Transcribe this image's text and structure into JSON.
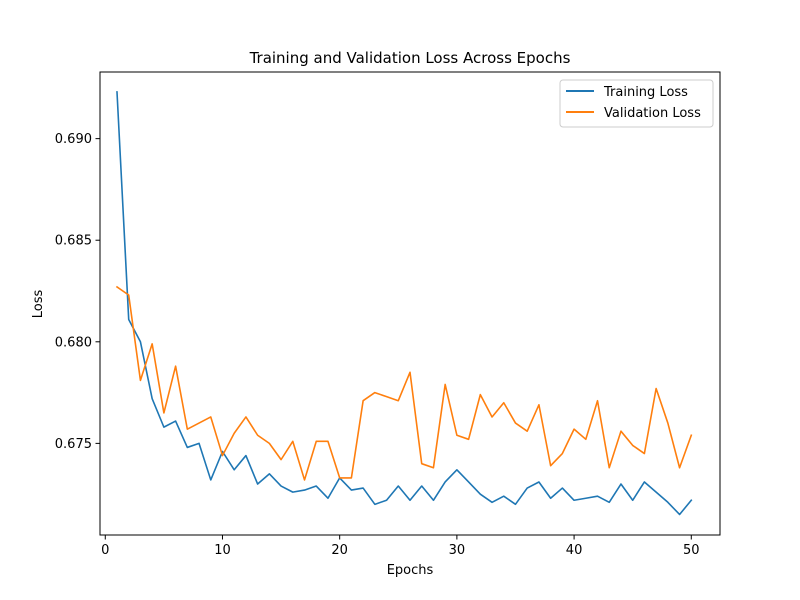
{
  "chart_data": {
    "type": "line",
    "title": "Training and Validation Loss Across Epochs",
    "xlabel": "Epochs",
    "ylabel": "Loss",
    "xlim": [
      -0.45,
      52.45
    ],
    "ylim": [
      0.67049,
      0.69328
    ],
    "xticks": [
      0,
      10,
      20,
      30,
      40,
      50
    ],
    "yticks": [
      0.675,
      0.68,
      0.685,
      0.69
    ],
    "ytick_labels": [
      "0.675",
      "0.680",
      "0.685",
      "0.690"
    ],
    "grid": false,
    "legend_position": "top-right",
    "x": [
      1,
      2,
      3,
      4,
      5,
      6,
      7,
      8,
      9,
      10,
      11,
      12,
      13,
      14,
      15,
      16,
      17,
      18,
      19,
      20,
      21,
      22,
      23,
      24,
      25,
      26,
      27,
      28,
      29,
      30,
      31,
      32,
      33,
      34,
      35,
      36,
      37,
      38,
      39,
      40,
      41,
      42,
      43,
      44,
      45,
      46,
      47,
      48,
      49,
      50
    ],
    "series": [
      {
        "name": "Training Loss",
        "color": "#1f77b4",
        "values": [
          0.6923,
          0.6811,
          0.68,
          0.6772,
          0.6758,
          0.6761,
          0.6748,
          0.675,
          0.6732,
          0.6746,
          0.6737,
          0.6744,
          0.673,
          0.6735,
          0.6729,
          0.6726,
          0.6727,
          0.6729,
          0.6723,
          0.6733,
          0.6727,
          0.6728,
          0.672,
          0.6722,
          0.6729,
          0.6722,
          0.6729,
          0.6722,
          0.6731,
          0.6737,
          0.6731,
          0.6725,
          0.6721,
          0.6724,
          0.672,
          0.6728,
          0.6731,
          0.6723,
          0.6728,
          0.6722,
          0.6723,
          0.6724,
          0.6721,
          0.673,
          0.6722,
          0.6731,
          0.6726,
          0.6721,
          0.6715,
          0.6722
        ]
      },
      {
        "name": "Validation Loss",
        "color": "#ff7f0e",
        "values": [
          0.6827,
          0.6823,
          0.6781,
          0.6799,
          0.6765,
          0.6788,
          0.6757,
          0.676,
          0.6763,
          0.6744,
          0.6755,
          0.6763,
          0.6754,
          0.675,
          0.6742,
          0.6751,
          0.6732,
          0.6751,
          0.6751,
          0.6733,
          0.6733,
          0.6771,
          0.6775,
          0.6773,
          0.6771,
          0.6785,
          0.674,
          0.6738,
          0.6779,
          0.6754,
          0.6752,
          0.6774,
          0.6763,
          0.677,
          0.676,
          0.6756,
          0.6769,
          0.6739,
          0.6745,
          0.6757,
          0.6752,
          0.6771,
          0.6738,
          0.6756,
          0.6749,
          0.6745,
          0.6777,
          0.676,
          0.6738,
          0.6754
        ]
      }
    ]
  }
}
